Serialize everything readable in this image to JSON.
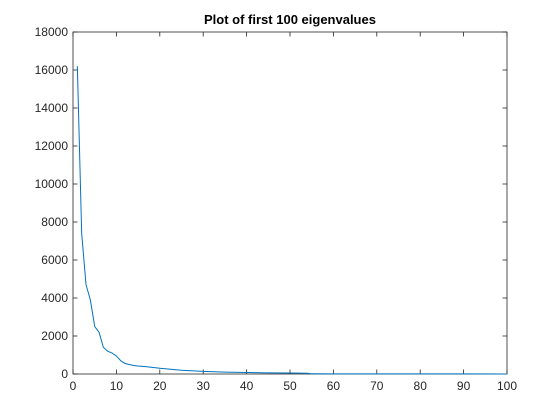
{
  "chart_data": {
    "type": "line",
    "title": "Plot of first 100 eigenvalues",
    "xlabel": "",
    "ylabel": "",
    "xlim": [
      0,
      100
    ],
    "ylim": [
      0,
      18000
    ],
    "xticks": [
      0,
      10,
      20,
      30,
      40,
      50,
      60,
      70,
      80,
      90,
      100
    ],
    "yticks": [
      0,
      2000,
      4000,
      6000,
      8000,
      10000,
      12000,
      14000,
      16000,
      18000
    ],
    "grid": false,
    "line_color": "#0072BD",
    "series": [
      {
        "x": [
          1,
          2,
          3,
          4,
          5,
          6,
          7,
          8,
          9,
          10,
          11,
          12,
          13,
          14,
          15,
          17,
          20,
          25,
          30,
          35,
          40,
          45,
          50,
          54,
          55,
          60,
          70,
          80,
          90,
          100
        ],
        "values": [
          16200,
          7400,
          4700,
          3900,
          2500,
          2200,
          1400,
          1200,
          1100,
          950,
          700,
          550,
          500,
          450,
          420,
          380,
          300,
          200,
          140,
          100,
          80,
          60,
          50,
          40,
          10,
          8,
          6,
          5,
          4,
          3
        ]
      }
    ]
  }
}
